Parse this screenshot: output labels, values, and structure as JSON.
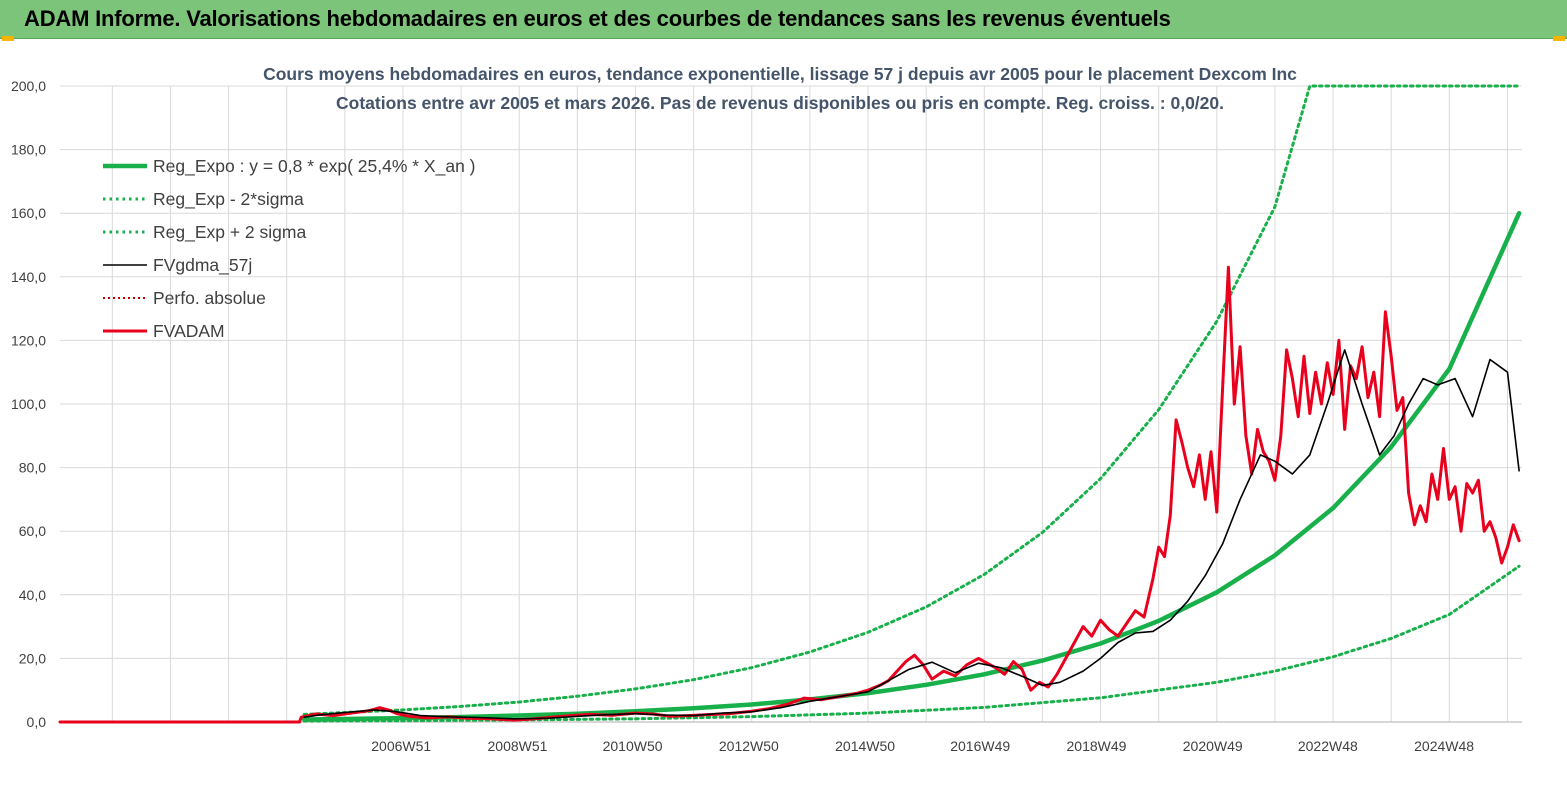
{
  "header": {
    "title": "ADAM Informe. Valorisations hebdomadaires en euros et des courbes de tendances sans les revenus éventuels"
  },
  "colors": {
    "header_bg": "#7dc47b",
    "reg_green": "#18b04a",
    "fvadam_red": "#e8001c",
    "fvgdma_black": "#000000",
    "perfo_red": "#c00000",
    "grid": "#d9d9d9"
  },
  "chart_data": {
    "type": "line",
    "title": "Cours moyens  hebdomadaires en euros, tendance exponentielle, lissage 57 j depuis avr 2005 pour le placement Dexcom Inc",
    "subtitle": "Cotations entre avr 2005 et mars 2026.  Pas de revenus disponibles ou pris en compte. Reg. croiss. : 0,0/20.",
    "xlabel": "",
    "ylabel": "",
    "ylim": [
      0,
      200
    ],
    "xlim": [
      2001.1,
      2026.25
    ],
    "yticks": [
      "0,0",
      "20,0",
      "40,0",
      "60,0",
      "80,0",
      "100,0",
      "120,0",
      "140,0",
      "160,0",
      "180,0",
      "200,0"
    ],
    "xticks": [
      {
        "label": "2006W51",
        "x": 2006.97
      },
      {
        "label": "2008W51",
        "x": 2008.97
      },
      {
        "label": "2010W50",
        "x": 2010.95
      },
      {
        "label": "2012W50",
        "x": 2012.95
      },
      {
        "label": "2014W50",
        "x": 2014.95
      },
      {
        "label": "2016W49",
        "x": 2016.93
      },
      {
        "label": "2018W49",
        "x": 2018.93
      },
      {
        "label": "2020W49",
        "x": 2020.93
      },
      {
        "label": "2022W48",
        "x": 2022.91
      },
      {
        "label": "2024W48",
        "x": 2024.91
      }
    ],
    "grid": true,
    "legend_position": "top-left",
    "series": [
      {
        "name": "Reg_Expo : y = 0,8 * exp( 25,4% *  X_an )",
        "style": "solid-thick",
        "color": "#18b04a",
        "x": [
          2005.3,
          2006,
          2007,
          2008,
          2009,
          2010,
          2011,
          2012,
          2013,
          2014,
          2015,
          2016,
          2017,
          2018,
          2019,
          2020,
          2021,
          2022,
          2023,
          2024,
          2025,
          2026.2
        ],
        "y": [
          0.8,
          0.95,
          1.23,
          1.58,
          2.03,
          2.6,
          3.35,
          4.3,
          5.5,
          7.1,
          9.1,
          11.7,
          15.0,
          19.3,
          24.7,
          31.8,
          40.8,
          52.4,
          67.3,
          86.5,
          111,
          160
        ]
      },
      {
        "name": "Reg_Exp - 2*sigma",
        "style": "dotted",
        "color": "#18b04a",
        "x": [
          2005.3,
          2007,
          2009,
          2011,
          2013,
          2015,
          2017,
          2019,
          2021,
          2022,
          2023,
          2024,
          2025,
          2026.2
        ],
        "y": [
          0.3,
          0.4,
          0.65,
          1.0,
          1.7,
          2.8,
          4.6,
          7.6,
          12.5,
          16.0,
          20.5,
          26.3,
          33.8,
          49
        ]
      },
      {
        "name": "Reg_Exp + 2 sigma",
        "style": "dotted",
        "color": "#18b04a",
        "x": [
          2005.3,
          2006,
          2007,
          2008,
          2009,
          2010,
          2011,
          2012,
          2013,
          2014,
          2015,
          2016,
          2017,
          2018,
          2019,
          2020,
          2021,
          2022,
          2022.6,
          2026.2
        ],
        "y": [
          2.4,
          3.0,
          3.8,
          4.9,
          6.3,
          8.1,
          10.4,
          13.3,
          17.1,
          22.0,
          28.2,
          36.2,
          46.4,
          59.6,
          76.5,
          98.2,
          126,
          162,
          200,
          200
        ]
      },
      {
        "name": "FVgdma_57j",
        "style": "solid-thin",
        "color": "#000000",
        "x": [
          2005.3,
          2005.6,
          2006,
          2006.5,
          2006.9,
          2007.3,
          2007.8,
          2008.3,
          2008.9,
          2009.5,
          2010,
          2010.5,
          2011,
          2011.5,
          2012,
          2012.5,
          2013,
          2013.5,
          2014,
          2014.5,
          2015,
          2015.3,
          2015.7,
          2016.1,
          2016.5,
          2016.9,
          2017.3,
          2017.7,
          2018,
          2018.3,
          2018.7,
          2019,
          2019.3,
          2019.6,
          2019.9,
          2020.2,
          2020.5,
          2020.8,
          2021.1,
          2021.4,
          2021.75,
          2022.0,
          2022.3,
          2022.6,
          2022.9,
          2023.2,
          2023.5,
          2023.8,
          2024.05,
          2024.3,
          2024.55,
          2024.8,
          2025.1,
          2025.4,
          2025.7,
          2026.0,
          2026.2
        ],
        "y": [
          1.5,
          2.3,
          3.0,
          3.8,
          3.2,
          2.0,
          1.6,
          1.4,
          1.0,
          1.2,
          1.8,
          2.3,
          2.6,
          2.2,
          2.0,
          2.8,
          3.2,
          4.5,
          6.5,
          8.0,
          9.5,
          12.5,
          16.5,
          18.8,
          15.5,
          18.5,
          17.0,
          14.0,
          11.5,
          12.5,
          16.0,
          20.0,
          25.0,
          28.0,
          28.5,
          32.0,
          38.0,
          46.0,
          56.0,
          70.0,
          84.0,
          82.0,
          78.0,
          84.0,
          100.0,
          117.0,
          100.0,
          84.0,
          90.0,
          100.0,
          108.0,
          106.0,
          108.0,
          96.0,
          114.0,
          110.0,
          79.0
        ]
      },
      {
        "name": "Perfo. absolue",
        "style": "dotted-thin",
        "color": "#c00000",
        "x": [],
        "y": []
      },
      {
        "name": "FVADAM",
        "style": "solid-medium",
        "color": "#e8001c",
        "x": [
          2001.1,
          2005.22,
          2005.25,
          2005.5,
          2005.8,
          2006.1,
          2006.4,
          2006.6,
          2006.75,
          2006.9,
          2007.1,
          2007.4,
          2007.8,
          2008.1,
          2008.5,
          2008.9,
          2009.2,
          2009.5,
          2009.8,
          2010.2,
          2010.6,
          2011.0,
          2011.3,
          2011.6,
          2011.9,
          2012.2,
          2012.6,
          2013.0,
          2013.3,
          2013.6,
          2013.9,
          2014.2,
          2014.5,
          2014.8,
          2015.0,
          2015.2,
          2015.35,
          2015.5,
          2015.65,
          2015.8,
          2015.95,
          2016.1,
          2016.3,
          2016.5,
          2016.7,
          2016.9,
          2017.05,
          2017.2,
          2017.35,
          2017.5,
          2017.65,
          2017.8,
          2017.95,
          2018.1,
          2018.25,
          2018.4,
          2018.55,
          2018.7,
          2018.85,
          2019.0,
          2019.15,
          2019.3,
          2019.45,
          2019.6,
          2019.75,
          2019.9,
          2020.0,
          2020.1,
          2020.2,
          2020.3,
          2020.4,
          2020.5,
          2020.6,
          2020.7,
          2020.8,
          2020.9,
          2021.0,
          2021.1,
          2021.2,
          2021.3,
          2021.4,
          2021.5,
          2021.6,
          2021.7,
          2021.8,
          2021.9,
          2022.0,
          2022.1,
          2022.2,
          2022.3,
          2022.4,
          2022.5,
          2022.6,
          2022.7,
          2022.8,
          2022.9,
          2023.0,
          2023.1,
          2023.2,
          2023.3,
          2023.4,
          2023.5,
          2023.6,
          2023.7,
          2023.8,
          2023.9,
          2024.0,
          2024.1,
          2024.2,
          2024.3,
          2024.4,
          2024.5,
          2024.6,
          2024.7,
          2024.8,
          2024.9,
          2025.0,
          2025.1,
          2025.2,
          2025.3,
          2025.4,
          2025.5,
          2025.6,
          2025.7,
          2025.8,
          2025.9,
          2026.0,
          2026.1,
          2026.2
        ],
        "y": [
          0,
          0,
          1.5,
          2.5,
          2.0,
          2.8,
          3.5,
          4.5,
          3.8,
          2.6,
          1.8,
          1.3,
          1.6,
          1.2,
          1.0,
          0.6,
          0.9,
          1.4,
          1.9,
          2.4,
          2.1,
          2.8,
          2.5,
          1.8,
          2.0,
          2.3,
          2.6,
          3.4,
          4.2,
          5.5,
          7.5,
          7.0,
          8.0,
          9.0,
          10.0,
          11.5,
          13.0,
          16.0,
          19.0,
          21.0,
          18.0,
          13.5,
          16.0,
          14.5,
          18.0,
          20.0,
          18.5,
          17.0,
          15.0,
          19.0,
          16.5,
          10.0,
          12.5,
          11.0,
          15.0,
          20.0,
          25.0,
          30.0,
          27.0,
          32.0,
          29.0,
          27.0,
          31.0,
          35.0,
          33.0,
          45.0,
          55.0,
          52.0,
          65.0,
          95.0,
          88.0,
          80.0,
          74.0,
          84.0,
          70.0,
          85.0,
          66.0,
          105.0,
          143.0,
          100.0,
          118.0,
          90.0,
          78.0,
          92.0,
          85.0,
          82.0,
          76.0,
          90.0,
          117.0,
          108.0,
          96.0,
          115.0,
          97.0,
          110.0,
          100.0,
          113.0,
          103.0,
          120.0,
          92.0,
          112.0,
          108.0,
          118.0,
          102.0,
          110.0,
          96.0,
          129.0,
          115.0,
          98.0,
          102.0,
          72.0,
          62.0,
          68.0,
          63.0,
          78.0,
          70.0,
          86.0,
          70.0,
          74.0,
          60.0,
          75.0,
          72.0,
          76.0,
          60.0,
          63.0,
          58.0,
          50.0,
          55.0,
          62.0,
          57.0
        ],
        "note": ""
      }
    ]
  }
}
